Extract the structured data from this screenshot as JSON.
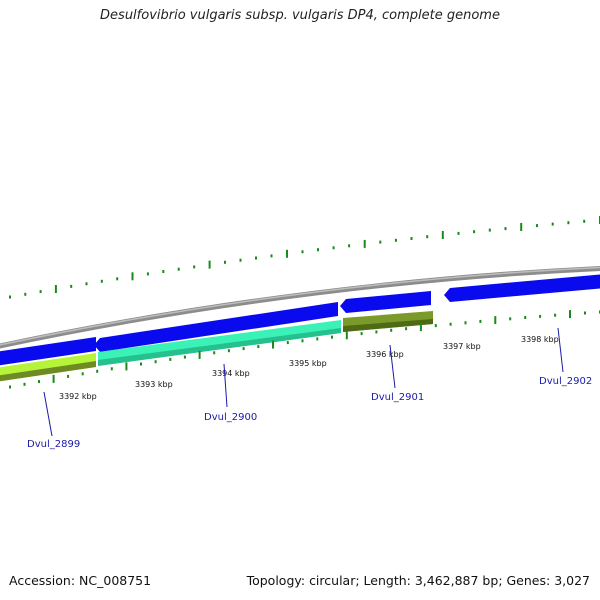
{
  "title": "Desulfovibrio vulgaris subsp. vulgaris DP4, complete genome",
  "footer": {
    "accession_label": "Accession:",
    "accession": "NC_008751",
    "topology_label": "Topology:",
    "topology": "circular",
    "length_label": "Length:",
    "length": "3,462,887 bp",
    "genes_label": "Genes:",
    "genes": "3,027"
  },
  "colors": {
    "backbone": "#8c8c8c",
    "forward_gene": "#0a0aee",
    "reverse_gene_a": "#b6f43a",
    "reverse_gene_b": "#3af2b6",
    "reverse_gene_c": "#7a9a2a",
    "gc_marks": "#1a8a1a",
    "label_line": "#1a1aa6"
  },
  "scale_labels": [
    "3392 kbp",
    "3393 kbp",
    "3394 kbp",
    "3395 kbp",
    "3396 kbp",
    "3397 kbp",
    "3398 kbp"
  ],
  "gene_labels": [
    "Dvul_2899",
    "Dvul_2900",
    "Dvul_2901",
    "Dvul_2902"
  ]
}
